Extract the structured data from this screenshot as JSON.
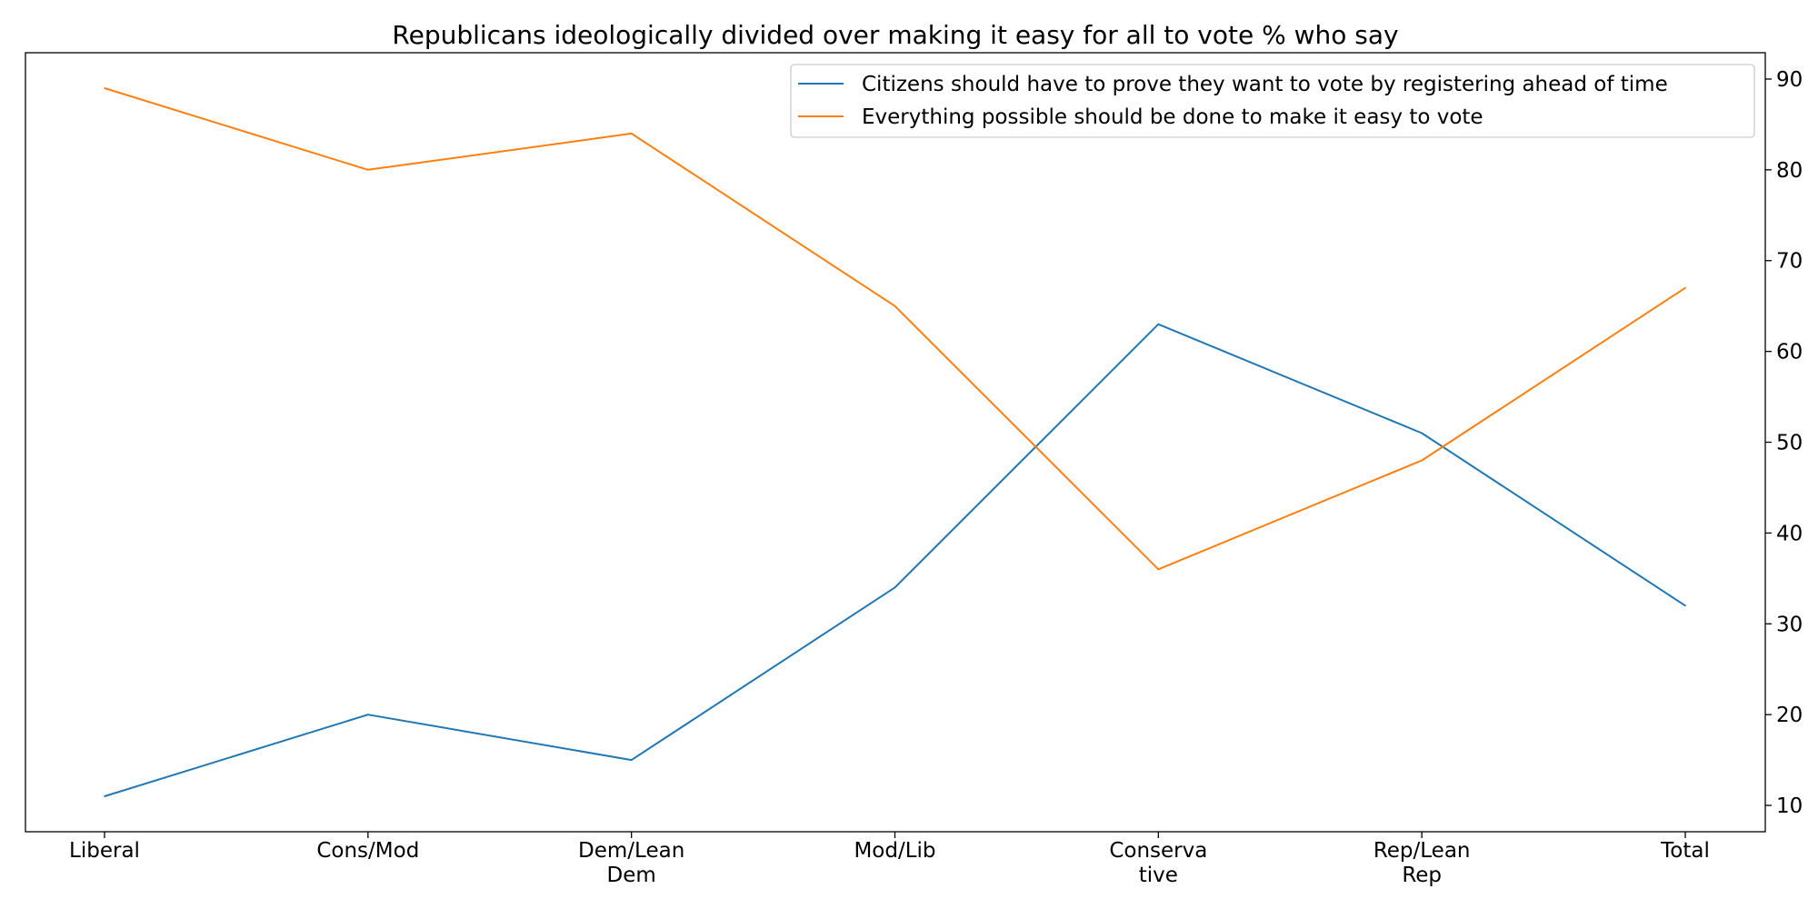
{
  "chart_data": {
    "type": "line",
    "title": "Republicans ideologically divided over making it easy for all to vote % who say",
    "xlabel": "",
    "ylabel": "",
    "categories": [
      [
        "Liberal"
      ],
      [
        "Cons/Mod"
      ],
      [
        "Dem/Lean",
        "Dem"
      ],
      [
        "Mod/Lib"
      ],
      [
        "Conserva",
        "tive"
      ],
      [
        "Rep/Lean",
        "Rep"
      ],
      [
        "Total"
      ]
    ],
    "series": [
      {
        "name": "Citizens should have to prove they want to vote by registering ahead of time",
        "color": "#1f77b4",
        "values": [
          11,
          20,
          15,
          34,
          63,
          51,
          32
        ]
      },
      {
        "name": "Everything possible should be done to make it easy to vote",
        "color": "#ff7f0e",
        "values": [
          89,
          80,
          84,
          65,
          36,
          48,
          67
        ]
      }
    ],
    "yaxis_side": "right",
    "yticks": [
      10,
      20,
      30,
      40,
      50,
      60,
      70,
      80,
      90
    ],
    "ylim": [
      7.1,
      92.9
    ],
    "grid": false,
    "legend_position": "top-right"
  }
}
